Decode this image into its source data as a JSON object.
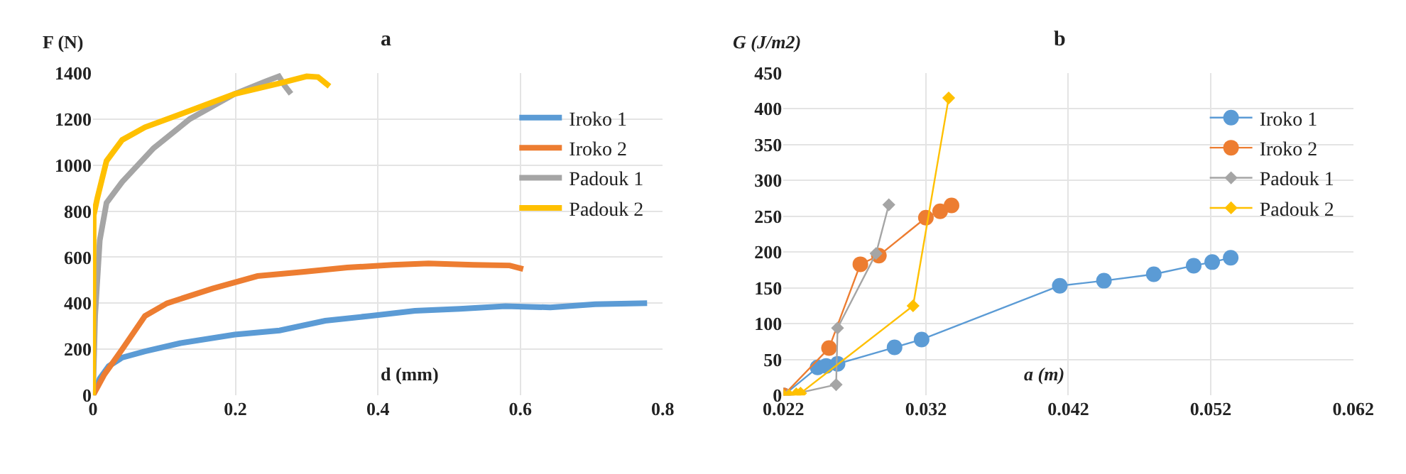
{
  "chart_data": [
    {
      "type": "line",
      "title": "a",
      "xlabel": "d (mm)",
      "ylabel": "F (N)",
      "xlim": [
        0,
        0.8
      ],
      "xticks": [
        0,
        0.2,
        0.4,
        0.6,
        0.8
      ],
      "ylim": [
        0,
        1400
      ],
      "yticks": [
        0,
        200,
        400,
        600,
        800,
        1000,
        1200,
        1400
      ],
      "grid": true,
      "legend": "top right",
      "marker": "none",
      "line_style": "solid",
      "series": [
        {
          "name": "Iroko 1",
          "color": "#5b9bd5",
          "x": [
            0,
            0.0095,
            0.022,
            0.041,
            0.073,
            0.123,
            0.199,
            0.262,
            0.326,
            0.389,
            0.452,
            0.515,
            0.579,
            0.642,
            0.705,
            0.778
          ],
          "values": [
            0,
            73,
            127,
            164,
            191,
            227,
            264,
            282,
            324,
            345,
            367,
            376,
            387,
            382,
            396,
            400
          ]
        },
        {
          "name": "Iroko 2",
          "color": "#ed7d31",
          "x": [
            0,
            0.016,
            0.041,
            0.073,
            0.104,
            0.168,
            0.231,
            0.294,
            0.357,
            0.421,
            0.471,
            0.534,
            0.585,
            0.604
          ],
          "values": [
            0,
            91,
            200,
            345,
            400,
            464,
            518,
            536,
            555,
            567,
            573,
            567,
            564,
            549
          ]
        },
        {
          "name": "Padouk 1",
          "color": "#a5a5a5",
          "x": [
            0,
            0.003,
            0.0095,
            0.019,
            0.041,
            0.085,
            0.136,
            0.199,
            0.243,
            0.261,
            0.269,
            0.278
          ],
          "values": [
            0,
            345,
            673,
            836,
            927,
            1073,
            1200,
            1309,
            1364,
            1385,
            1345,
            1309
          ]
        },
        {
          "name": "Padouk 2",
          "color": "#ffc000",
          "x": [
            0,
            0.001,
            0.006,
            0.019,
            0.041,
            0.073,
            0.136,
            0.199,
            0.262,
            0.3,
            0.316,
            0.332
          ],
          "values": [
            0,
            782,
            855,
            1018,
            1109,
            1164,
            1236,
            1309,
            1355,
            1385,
            1382,
            1342
          ]
        }
      ]
    },
    {
      "type": "line",
      "title": "b",
      "xlabel": "a (m)",
      "ylabel": "G (J/m2)",
      "xlim": [
        0.022,
        0.062
      ],
      "xticks": [
        0.022,
        0.032,
        0.042,
        0.052,
        0.062
      ],
      "ylim": [
        0,
        450
      ],
      "yticks": [
        0,
        50,
        100,
        150,
        200,
        250,
        300,
        350,
        400,
        450
      ],
      "grid": true,
      "legend": "top right",
      "line_style": "solid",
      "series": [
        {
          "name": "Iroko 1",
          "color": "#5b9bd5",
          "marker": "circle",
          "x": [
            0.022,
            0.0244,
            0.025,
            0.0258,
            0.0298,
            0.0317,
            0.0414,
            0.0445,
            0.048,
            0.0508,
            0.0521,
            0.0534
          ],
          "values": [
            0,
            39,
            41,
            44,
            67,
            78,
            153,
            160,
            169,
            181,
            186,
            192
          ]
        },
        {
          "name": "Iroko 2",
          "color": "#ed7d31",
          "marker": "circle",
          "x": [
            0.022,
            0.0252,
            0.0274,
            0.0287,
            0.032,
            0.033,
            0.0338
          ],
          "values": [
            0,
            66,
            183,
            195,
            248,
            257,
            265
          ]
        },
        {
          "name": "Padouk 1",
          "color": "#a5a5a5",
          "marker": "diamond",
          "x": [
            0.0223,
            0.0257,
            0.0258,
            0.0285,
            0.0294
          ],
          "values": [
            0,
            15,
            94,
            198,
            266
          ]
        },
        {
          "name": "Padouk 2",
          "color": "#ffc000",
          "marker": "diamond",
          "x": [
            0.022,
            0.0224,
            0.0229,
            0.0232,
            0.0311,
            0.0336
          ],
          "values": [
            0,
            0,
            2,
            3,
            125,
            415
          ]
        }
      ]
    }
  ]
}
